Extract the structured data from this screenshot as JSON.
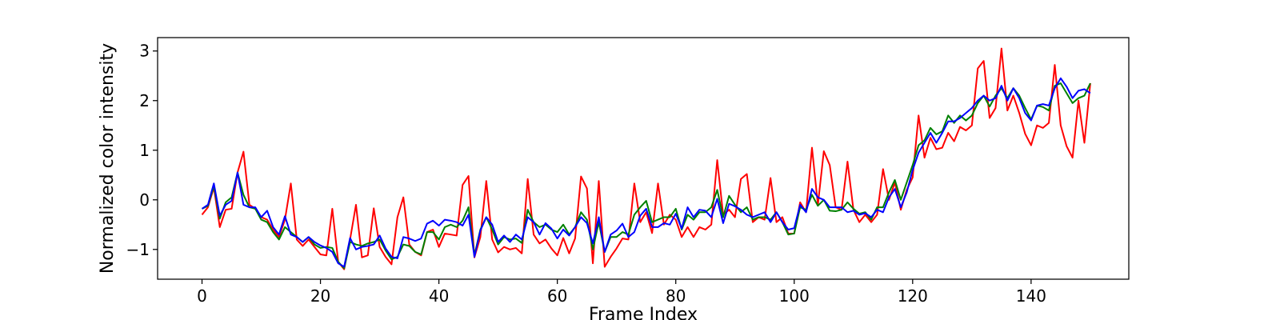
{
  "chart_data": {
    "type": "line",
    "title": "",
    "xlabel": "Frame Index",
    "ylabel": "Normalized color intensity",
    "xlim": [
      -7.5,
      156.5
    ],
    "ylim": [
      -1.6,
      3.27
    ],
    "xticks": [
      0,
      20,
      40,
      60,
      80,
      100,
      120,
      140
    ],
    "yticks": [
      -1,
      0,
      1,
      2,
      3
    ],
    "ytick_labels": [
      "−1",
      "0",
      "1",
      "2",
      "3"
    ],
    "grid": false,
    "legend": "none",
    "series": [
      {
        "color": "#ff0000",
        "values": [
          -0.3,
          -0.15,
          0.25,
          -0.55,
          -0.2,
          -0.18,
          0.55,
          0.97,
          -0.1,
          -0.18,
          -0.35,
          -0.4,
          -0.6,
          -0.75,
          -0.4,
          0.33,
          -0.8,
          -0.93,
          -0.8,
          -0.95,
          -1.1,
          -1.12,
          -0.18,
          -1.25,
          -1.4,
          -0.8,
          -0.1,
          -1.16,
          -1.12,
          -0.17,
          -0.95,
          -1.15,
          -1.3,
          -0.35,
          0.05,
          -0.9,
          -1.05,
          -1.12,
          -0.65,
          -0.6,
          -0.95,
          -0.68,
          -0.7,
          -0.72,
          0.3,
          0.48,
          -1.16,
          -0.75,
          0.38,
          -0.8,
          -1.06,
          -0.95,
          -1.0,
          -0.97,
          -1.08,
          0.42,
          -0.7,
          -0.88,
          -0.8,
          -0.98,
          -1.12,
          -0.77,
          -1.08,
          -0.78,
          0.47,
          0.23,
          -1.28,
          0.38,
          -1.35,
          -1.15,
          -0.98,
          -0.78,
          -0.8,
          0.33,
          -0.45,
          -0.25,
          -0.67,
          0.33,
          -0.5,
          -0.3,
          -0.4,
          -0.75,
          -0.55,
          -0.75,
          -0.55,
          -0.6,
          -0.5,
          0.8,
          -0.3,
          -0.2,
          -0.35,
          0.42,
          0.52,
          -0.45,
          -0.35,
          -0.4,
          0.44,
          -0.45,
          -0.35,
          -0.68,
          -0.68,
          -0.05,
          -0.25,
          1.05,
          -0.1,
          0.98,
          0.7,
          -0.15,
          -0.2,
          0.77,
          -0.2,
          -0.45,
          -0.3,
          -0.45,
          -0.3,
          0.62,
          0.0,
          0.35,
          -0.2,
          0.2,
          0.45,
          1.7,
          0.85,
          1.25,
          1.02,
          1.05,
          1.35,
          1.18,
          1.47,
          1.4,
          1.5,
          2.65,
          2.8,
          1.65,
          1.85,
          3.05,
          1.8,
          2.1,
          1.75,
          1.33,
          1.1,
          1.5,
          1.45,
          1.55,
          2.72,
          1.5,
          1.08,
          0.85,
          2.0,
          1.15,
          2.35
        ]
      },
      {
        "color": "#008000",
        "values": [
          -0.18,
          -0.12,
          0.28,
          -0.38,
          -0.05,
          0.05,
          0.55,
          0.1,
          -0.15,
          -0.18,
          -0.4,
          -0.45,
          -0.65,
          -0.8,
          -0.55,
          -0.65,
          -0.75,
          -0.85,
          -0.75,
          -0.9,
          -0.97,
          -0.95,
          -0.97,
          -1.25,
          -1.38,
          -0.85,
          -0.9,
          -0.93,
          -0.88,
          -0.85,
          -0.8,
          -1.02,
          -1.2,
          -1.15,
          -0.9,
          -0.93,
          -1.05,
          -1.1,
          -0.65,
          -0.65,
          -0.8,
          -0.55,
          -0.5,
          -0.55,
          -0.42,
          -0.15,
          -1.12,
          -0.6,
          -0.35,
          -0.6,
          -0.9,
          -0.75,
          -0.8,
          -0.78,
          -0.87,
          -0.2,
          -0.45,
          -0.55,
          -0.5,
          -0.6,
          -0.65,
          -0.5,
          -0.7,
          -0.55,
          -0.25,
          -0.4,
          -1.0,
          -0.45,
          -1.05,
          -0.75,
          -0.75,
          -0.65,
          -0.7,
          -0.3,
          -0.15,
          -0.02,
          -0.45,
          -0.4,
          -0.35,
          -0.35,
          -0.18,
          -0.6,
          -0.3,
          -0.4,
          -0.25,
          -0.25,
          -0.15,
          0.2,
          -0.35,
          0.08,
          -0.1,
          -0.25,
          -0.15,
          -0.4,
          -0.35,
          -0.35,
          -0.4,
          -0.25,
          -0.45,
          -0.7,
          -0.68,
          -0.15,
          -0.2,
          0.1,
          -0.12,
          0.0,
          -0.22,
          -0.23,
          -0.2,
          -0.05,
          -0.18,
          -0.28,
          -0.25,
          -0.4,
          -0.15,
          -0.15,
          0.15,
          0.4,
          0.0,
          0.35,
          0.7,
          1.1,
          1.2,
          1.45,
          1.32,
          1.38,
          1.7,
          1.55,
          1.7,
          1.6,
          1.7,
          1.95,
          2.1,
          1.88,
          2.1,
          2.25,
          2.05,
          2.25,
          2.1,
          1.85,
          1.62,
          1.9,
          1.87,
          1.8,
          2.3,
          2.35,
          2.15,
          1.95,
          2.05,
          2.1,
          2.35
        ]
      },
      {
        "color": "#0000ff",
        "values": [
          -0.18,
          -0.1,
          0.33,
          -0.32,
          -0.1,
          -0.02,
          0.55,
          -0.1,
          -0.15,
          -0.15,
          -0.35,
          -0.22,
          -0.55,
          -0.7,
          -0.33,
          -0.7,
          -0.75,
          -0.85,
          -0.75,
          -0.85,
          -0.92,
          -0.97,
          -1.05,
          -1.28,
          -1.35,
          -0.77,
          -1.0,
          -0.95,
          -0.93,
          -0.9,
          -0.72,
          -0.98,
          -1.15,
          -1.18,
          -0.75,
          -0.78,
          -0.83,
          -0.78,
          -0.48,
          -0.42,
          -0.52,
          -0.4,
          -0.42,
          -0.45,
          -0.52,
          -0.3,
          -1.15,
          -0.62,
          -0.35,
          -0.5,
          -0.85,
          -0.72,
          -0.85,
          -0.7,
          -0.8,
          -0.35,
          -0.45,
          -0.7,
          -0.47,
          -0.58,
          -0.78,
          -0.6,
          -0.72,
          -0.55,
          -0.35,
          -0.47,
          -0.88,
          -0.35,
          -1.05,
          -0.7,
          -0.62,
          -0.48,
          -0.75,
          -0.65,
          -0.32,
          -0.18,
          -0.55,
          -0.55,
          -0.47,
          -0.5,
          -0.28,
          -0.58,
          -0.15,
          -0.35,
          -0.2,
          -0.22,
          -0.35,
          0.02,
          -0.47,
          -0.08,
          -0.13,
          -0.2,
          -0.3,
          -0.35,
          -0.3,
          -0.25,
          -0.45,
          -0.25,
          -0.45,
          -0.6,
          -0.57,
          -0.1,
          -0.25,
          0.22,
          0.05,
          0.0,
          -0.15,
          -0.15,
          -0.15,
          -0.25,
          -0.22,
          -0.3,
          -0.27,
          -0.35,
          -0.2,
          -0.25,
          0.05,
          0.22,
          -0.15,
          0.15,
          0.6,
          0.95,
          1.15,
          1.35,
          1.15,
          1.35,
          1.58,
          1.58,
          1.65,
          1.75,
          1.85,
          2.0,
          2.1,
          2.0,
          2.05,
          2.3,
          2.0,
          2.25,
          2.05,
          1.75,
          1.6,
          1.9,
          1.93,
          1.9,
          2.25,
          2.45,
          2.28,
          2.05,
          2.2,
          2.23,
          2.15
        ]
      }
    ]
  }
}
